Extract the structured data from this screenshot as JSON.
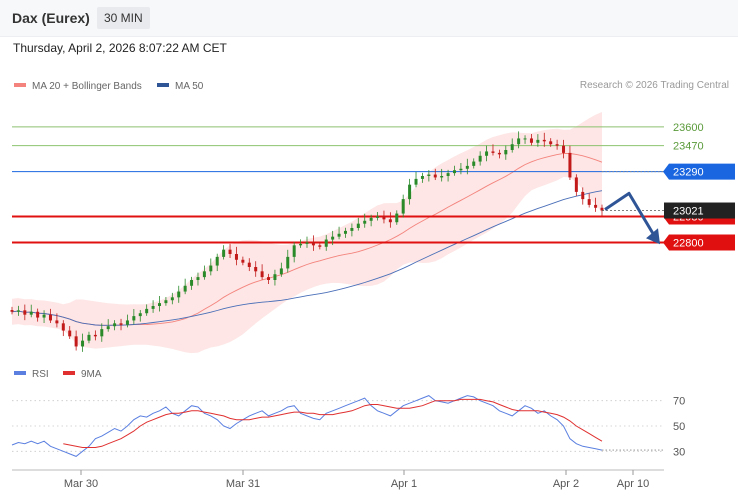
{
  "header": {
    "title": "Dax (Eurex)",
    "timeframe": "30 MIN"
  },
  "datetime": "Thursday, April 2, 2026 8:07:22 AM CET",
  "credit": "Research © 2026 Trading Central",
  "legend": [
    {
      "label": "MA 20 + Bollinger Bands",
      "color": "#f4837d"
    },
    {
      "label": "MA 50",
      "color": "#2f5597"
    }
  ],
  "rsi_legend": [
    {
      "label": "RSI",
      "color": "#5a7fe0"
    },
    {
      "label": "9MA",
      "color": "#e03030"
    }
  ],
  "chart_data": [
    {
      "type": "candlestick",
      "title": "Dax (Eurex)",
      "x_ticks": [
        "Mar 30",
        "Mar 31",
        "Apr 1",
        "Apr 2",
        "Apr 10"
      ],
      "ylim": [
        22000,
        23800
      ],
      "last_price": 23021,
      "level_lines": [
        {
          "value": 23600,
          "label": "23600",
          "color": "#8dc26f",
          "kind": "resistance"
        },
        {
          "value": 23470,
          "label": "23470",
          "color": "#8dc26f",
          "kind": "resistance"
        },
        {
          "value": 23290,
          "label": "23290",
          "color": "#1a66e0",
          "kind": "pivot"
        },
        {
          "value": 22980,
          "label": "22980",
          "color": "#e01010",
          "kind": "support"
        },
        {
          "value": 22800,
          "label": "22800",
          "color": "#e01010",
          "kind": "support"
        }
      ],
      "close_series": [
        22320,
        22330,
        22300,
        22320,
        22280,
        22300,
        22260,
        22240,
        22190,
        22150,
        22080,
        22120,
        22160,
        22150,
        22200,
        22220,
        22240,
        22230,
        22260,
        22290,
        22310,
        22340,
        22360,
        22380,
        22400,
        22420,
        22460,
        22500,
        22540,
        22560,
        22600,
        22640,
        22700,
        22750,
        22720,
        22680,
        22660,
        22630,
        22600,
        22560,
        22540,
        22580,
        22620,
        22700,
        22780,
        22790,
        22800,
        22780,
        22770,
        22820,
        22840,
        22860,
        22880,
        22900,
        22930,
        22950,
        22970,
        22980,
        22960,
        22940,
        23000,
        23100,
        23200,
        23240,
        23260,
        23270,
        23250,
        23260,
        23280,
        23300,
        23310,
        23330,
        23360,
        23400,
        23430,
        23420,
        23410,
        23440,
        23480,
        23520,
        23520,
        23490,
        23510,
        23500,
        23480,
        23470,
        23420,
        23250,
        23150,
        23100,
        23060,
        23040,
        23021
      ]
    },
    {
      "type": "line",
      "title": "RSI",
      "ylim": [
        20,
        80
      ],
      "y_ticks": [
        30,
        50,
        70
      ],
      "series": [
        {
          "name": "RSI",
          "values": [
            35,
            37,
            36,
            38,
            36,
            38,
            34,
            32,
            30,
            28,
            26,
            30,
            34,
            40,
            42,
            45,
            48,
            46,
            50,
            55,
            58,
            57,
            60,
            62,
            65,
            60,
            58,
            62,
            66,
            65,
            60,
            58,
            55,
            50,
            48,
            52,
            55,
            58,
            60,
            62,
            58,
            60,
            62,
            65,
            66,
            60,
            58,
            56,
            55,
            60,
            62,
            64,
            66,
            68,
            70,
            72,
            66,
            62,
            60,
            58,
            62,
            66,
            68,
            70,
            72,
            74,
            70,
            69,
            68,
            70,
            72,
            74,
            73,
            70,
            68,
            66,
            62,
            60,
            58,
            62,
            66,
            64,
            60,
            62,
            58,
            55,
            50,
            40,
            36,
            34,
            33,
            32,
            31
          ]
        },
        {
          "name": "9MA",
          "values": [
            null,
            null,
            null,
            null,
            null,
            null,
            null,
            null,
            36,
            35,
            34,
            33,
            33,
            33,
            34,
            36,
            38,
            40,
            43,
            46,
            50,
            53,
            55,
            57,
            59,
            60,
            60,
            61,
            62,
            62,
            61,
            60,
            59,
            58,
            56,
            55,
            55,
            55,
            56,
            57,
            57,
            58,
            59,
            60,
            61,
            61,
            60,
            60,
            59,
            59,
            59,
            60,
            61,
            62,
            64,
            66,
            67,
            67,
            66,
            65,
            64,
            64,
            64,
            65,
            66,
            68,
            70,
            70,
            70,
            70,
            71,
            71,
            71,
            71,
            70,
            69,
            67,
            65,
            63,
            62,
            62,
            62,
            62,
            61,
            60,
            59,
            57,
            54,
            50,
            47,
            44,
            41,
            38
          ]
        }
      ]
    }
  ]
}
